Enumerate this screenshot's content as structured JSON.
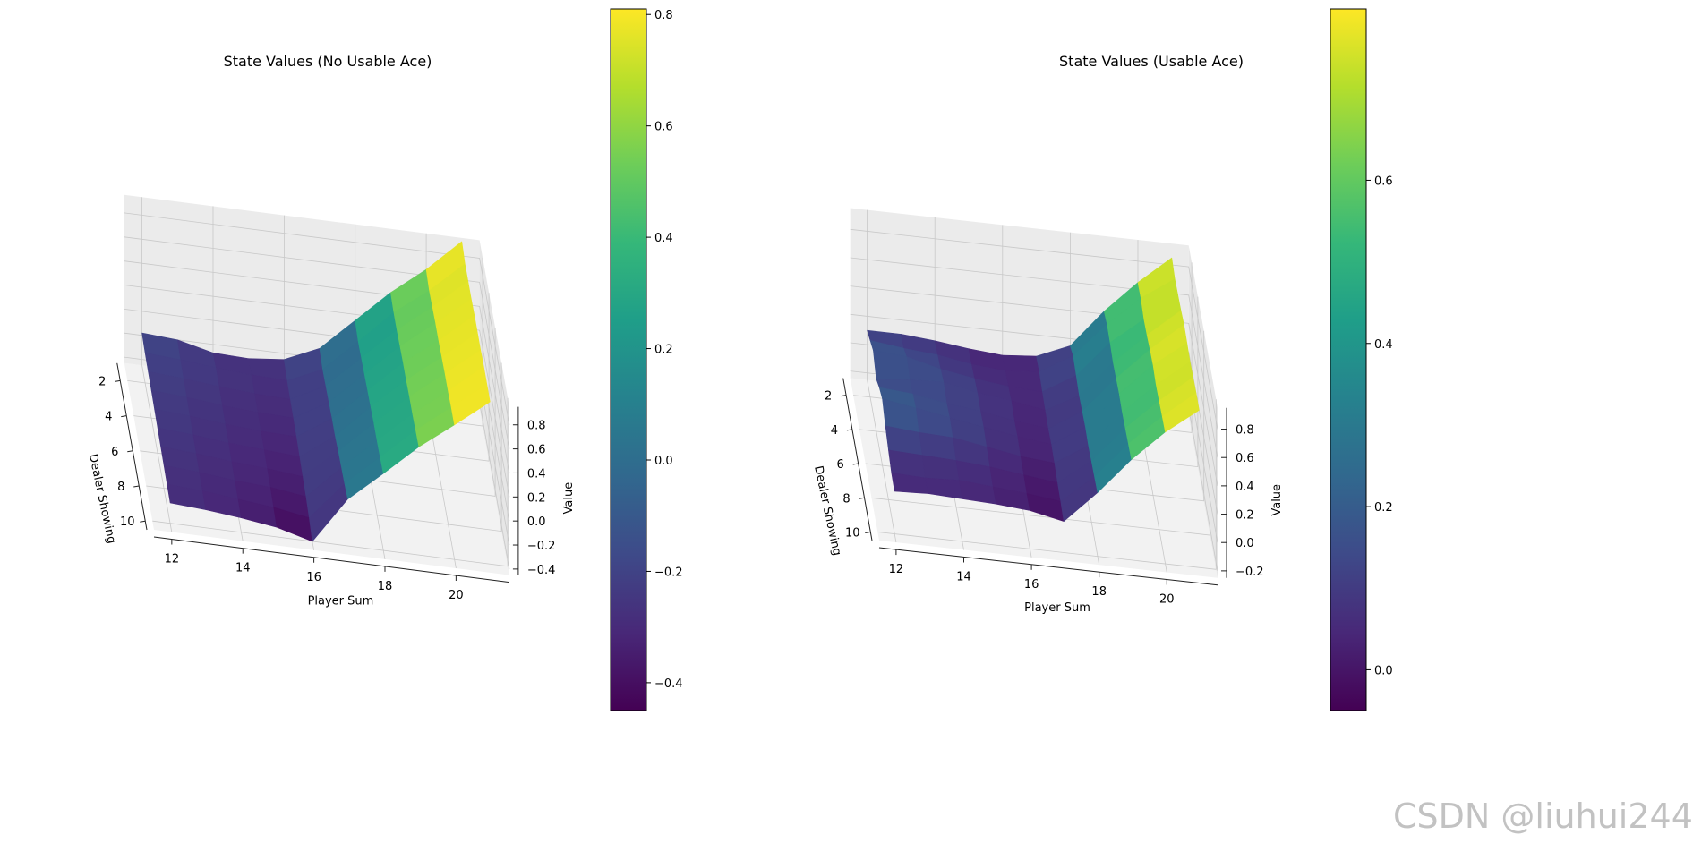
{
  "watermark": "CSDN @liuhui244",
  "chart_data": [
    {
      "type": "surface3d",
      "title": "State Values (No Usable Ace)",
      "xlabel": "Player Sum",
      "ylabel": "Dealer Showing",
      "zlabel": "Value",
      "x": [
        12,
        13,
        14,
        15,
        16,
        17,
        18,
        19,
        20,
        21
      ],
      "y": [
        1,
        2,
        3,
        4,
        5,
        6,
        7,
        8,
        9,
        10
      ],
      "x_ticks": [
        "12",
        "14",
        "16",
        "18",
        "20"
      ],
      "y_ticks": [
        "2",
        "4",
        "6",
        "8",
        "10"
      ],
      "z_ticks": [
        "−0.4",
        "−0.2",
        "0.0",
        "0.2",
        "0.4",
        "0.6",
        "0.8"
      ],
      "zlim": [
        -0.45,
        0.95
      ],
      "colormap": "viridis",
      "colorbar": {
        "min": -0.45,
        "max": 0.81,
        "ticks": [
          "−0.4",
          "−0.2",
          "0.0",
          "0.2",
          "0.4",
          "0.6",
          "0.8"
        ]
      },
      "z": [
        [
          -0.18,
          -0.2,
          -0.27,
          -0.28,
          -0.25,
          -0.12,
          0.15,
          0.42,
          0.65,
          0.92
        ],
        [
          -0.2,
          -0.22,
          -0.25,
          -0.27,
          -0.28,
          -0.15,
          0.12,
          0.4,
          0.62,
          0.88
        ],
        [
          -0.21,
          -0.23,
          -0.26,
          -0.28,
          -0.29,
          -0.14,
          0.13,
          0.4,
          0.63,
          0.88
        ],
        [
          -0.22,
          -0.24,
          -0.27,
          -0.29,
          -0.3,
          -0.13,
          0.14,
          0.41,
          0.64,
          0.88
        ],
        [
          -0.23,
          -0.25,
          -0.28,
          -0.3,
          -0.31,
          -0.12,
          0.15,
          0.42,
          0.64,
          0.89
        ],
        [
          -0.24,
          -0.26,
          -0.29,
          -0.31,
          -0.33,
          -0.12,
          0.16,
          0.42,
          0.65,
          0.89
        ],
        [
          -0.25,
          -0.27,
          -0.3,
          -0.32,
          -0.35,
          -0.1,
          0.17,
          0.43,
          0.66,
          0.89
        ],
        [
          -0.26,
          -0.28,
          -0.31,
          -0.33,
          -0.37,
          -0.09,
          0.17,
          0.43,
          0.66,
          0.9
        ],
        [
          -0.27,
          -0.29,
          -0.32,
          -0.35,
          -0.4,
          -0.08,
          0.18,
          0.44,
          0.67,
          0.9
        ],
        [
          -0.28,
          -0.3,
          -0.33,
          -0.37,
          -0.45,
          -0.06,
          0.19,
          0.45,
          0.67,
          0.9
        ]
      ]
    },
    {
      "type": "surface3d",
      "title": "State Values (Usable Ace)",
      "xlabel": "Player Sum",
      "ylabel": "Dealer Showing",
      "zlabel": "Value",
      "x": [
        12,
        13,
        14,
        15,
        16,
        17,
        18,
        19,
        20,
        21
      ],
      "y": [
        1,
        2,
        3,
        4,
        5,
        6,
        7,
        8,
        9,
        10
      ],
      "x_ticks": [
        "12",
        "14",
        "16",
        "18",
        "20"
      ],
      "y_ticks": [
        "2",
        "4",
        "6",
        "8",
        "10"
      ],
      "z_ticks": [
        "−0.2",
        "0.0",
        "0.2",
        "0.4",
        "0.6",
        "0.8"
      ],
      "zlim": [
        -0.25,
        0.95
      ],
      "colormap": "viridis",
      "colorbar": {
        "min": -0.05,
        "max": 0.81,
        "ticks": [
          "0.0",
          "0.2",
          "0.4",
          "0.6"
        ]
      },
      "z": [
        [
          0.1,
          0.1,
          0.08,
          0.05,
          0.03,
          0.05,
          0.15,
          0.42,
          0.65,
          0.85
        ],
        [
          0.15,
          0.12,
          0.1,
          0.06,
          0.04,
          0.06,
          0.2,
          0.45,
          0.66,
          0.82
        ],
        [
          0.2,
          0.18,
          0.12,
          0.08,
          0.05,
          0.04,
          0.18,
          0.44,
          0.63,
          0.83
        ],
        [
          0.12,
          0.14,
          0.15,
          0.1,
          0.07,
          0.03,
          0.16,
          0.42,
          0.64,
          0.84
        ],
        [
          0.18,
          0.16,
          0.12,
          0.09,
          0.05,
          0.02,
          0.17,
          0.43,
          0.66,
          0.86
        ],
        [
          0.22,
          0.18,
          0.14,
          0.1,
          0.06,
          0.03,
          0.18,
          0.44,
          0.67,
          0.85
        ],
        [
          0.15,
          0.13,
          0.12,
          0.08,
          0.04,
          0.02,
          0.17,
          0.43,
          0.65,
          0.84
        ],
        [
          0.1,
          0.09,
          0.08,
          0.06,
          0.03,
          0.0,
          0.18,
          0.44,
          0.66,
          0.85
        ],
        [
          0.06,
          0.05,
          0.06,
          0.04,
          0.02,
          -0.01,
          0.19,
          0.45,
          0.67,
          0.86
        ],
        [
          0.05,
          0.06,
          0.05,
          0.04,
          0.02,
          -0.03,
          0.2,
          0.46,
          0.68,
          0.86
        ]
      ]
    }
  ]
}
